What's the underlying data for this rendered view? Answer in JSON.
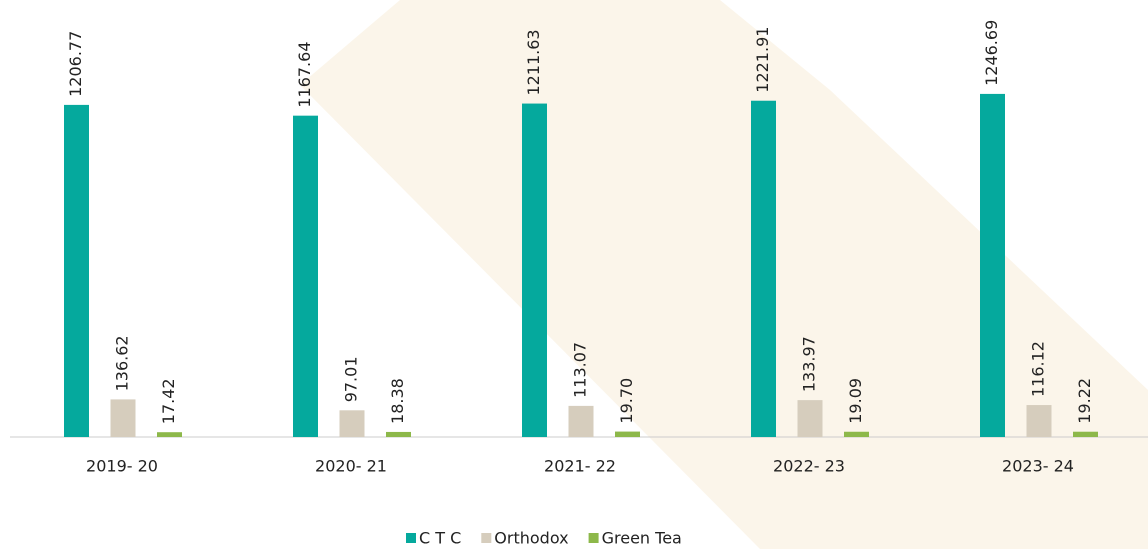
{
  "chart_data": {
    "type": "bar",
    "categories": [
      "2019- 20",
      "2020- 21",
      "2021- 22",
      "2022- 23",
      "2023- 24"
    ],
    "series": [
      {
        "name": "C T C",
        "color": "#05a99d",
        "values": [
          1206.77,
          1167.64,
          1211.63,
          1221.91,
          1246.69
        ],
        "value_labels": [
          "1206.77",
          "1167.64",
          "1211.63",
          "1221.91",
          "1246.69"
        ]
      },
      {
        "name": "Orthodox",
        "color": "#d6cdbd",
        "values": [
          136.62,
          97.01,
          113.07,
          133.97,
          116.12
        ],
        "value_labels": [
          "136.62",
          "97.01",
          "113.07",
          "133.97",
          "116.12"
        ]
      },
      {
        "name": "Green Tea",
        "color": "#8db84a",
        "values": [
          17.42,
          18.38,
          19.7,
          19.09,
          19.22
        ],
        "value_labels": [
          "17.42",
          "18.38",
          "19.70",
          "19.09",
          "19.22"
        ]
      }
    ],
    "legend": "bottom"
  }
}
